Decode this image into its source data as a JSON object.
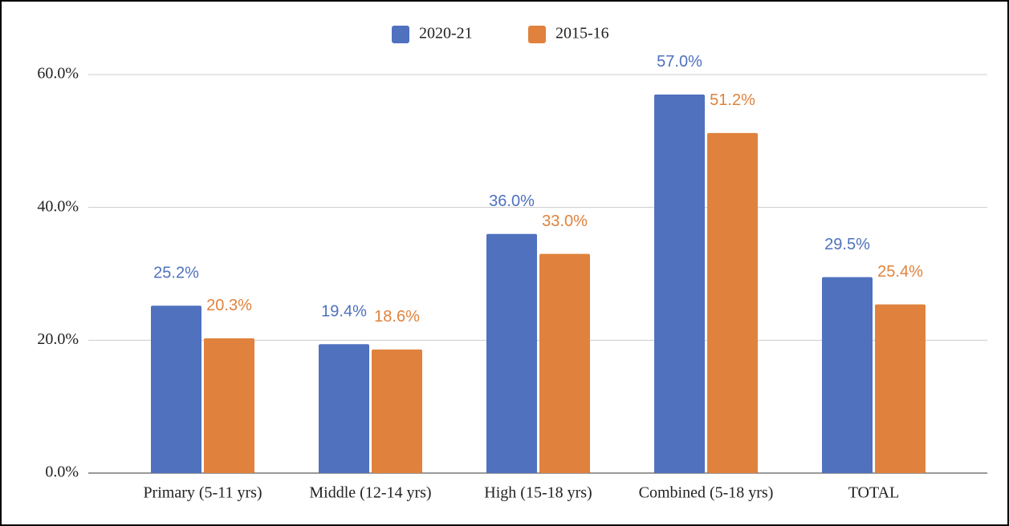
{
  "chart_data": {
    "type": "bar",
    "categories": [
      "Primary (5-11 yrs)",
      "Middle (12-14 yrs)",
      "High (15-18 yrs)",
      "Combined (5-18 yrs)",
      "TOTAL"
    ],
    "series": [
      {
        "name": "2020-21",
        "color": "#4f71be",
        "values": [
          25.2,
          19.4,
          36.0,
          57.0,
          29.5
        ],
        "value_labels": [
          "25.2%",
          "19.4%",
          "36.0%",
          "57.0%",
          "29.5%"
        ]
      },
      {
        "name": "2015-16",
        "color": "#e0823d",
        "values": [
          20.3,
          18.6,
          33.0,
          51.2,
          25.4
        ],
        "value_labels": [
          "20.3%",
          "18.6%",
          "33.0%",
          "51.2%",
          "25.4%"
        ]
      }
    ],
    "ylim": [
      0,
      60
    ],
    "yticks": [
      {
        "value": 0,
        "label": "0.0%"
      },
      {
        "value": 20,
        "label": "20.0%"
      },
      {
        "value": 40,
        "label": "40.0%"
      },
      {
        "value": 60,
        "label": "60.0%"
      }
    ],
    "grid": true,
    "legend": "top"
  }
}
